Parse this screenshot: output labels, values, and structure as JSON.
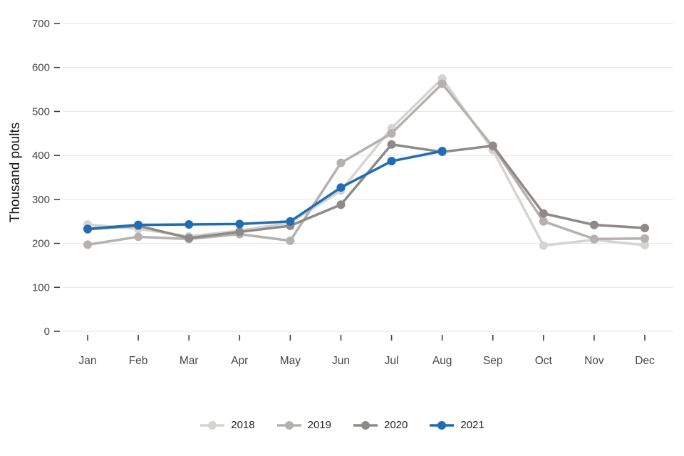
{
  "style": {
    "background": "#ffffff",
    "grid_color": "#e4e4e4",
    "tick_color": "#3f3f3f",
    "axis_text_color": "#474747",
    "legend_text_color": "#262626"
  },
  "chart_data": {
    "type": "line",
    "title": "",
    "xlabel": "",
    "ylabel": "Thousand poults",
    "ylim": [
      0,
      700
    ],
    "yticks": [
      0,
      100,
      200,
      300,
      400,
      500,
      600,
      700
    ],
    "grid": true,
    "legend_position": "bottom",
    "x": [
      "Jan",
      "Feb",
      "Mar",
      "Apr",
      "May",
      "Jun",
      "Jul",
      "Aug",
      "Sep",
      "Oct",
      "Nov",
      "Dec"
    ],
    "series": [
      {
        "name": "2018",
        "color": "#d6d3d1",
        "values": [
          243,
          233,
          216,
          229,
          247,
          320,
          462,
          575,
          412,
          195,
          208,
          196
        ]
      },
      {
        "name": "2019",
        "color": "#b4b1ae",
        "values": [
          197,
          215,
          210,
          221,
          206,
          383,
          450,
          563,
          420,
          250,
          210,
          211
        ]
      },
      {
        "name": "2020",
        "color": "#8d8a87",
        "values": [
          232,
          240,
          212,
          226,
          240,
          288,
          425,
          408,
          422,
          268,
          242,
          235
        ]
      },
      {
        "name": "2021",
        "color": "#1f6db4",
        "values": [
          233,
          242,
          243,
          244,
          250,
          327,
          387,
          410,
          null,
          null,
          null,
          null
        ]
      }
    ]
  }
}
